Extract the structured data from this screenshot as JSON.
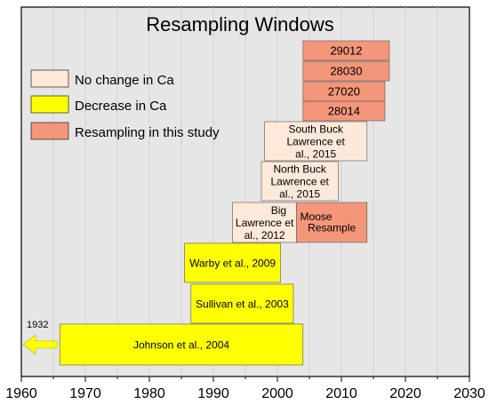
{
  "chart_data": {
    "type": "bar",
    "title": "Resampling Windows",
    "xlabel": "",
    "ylabel": "",
    "xlim": [
      1960,
      2030
    ],
    "x_ticks": [
      "1960",
      "1970",
      "1980",
      "1990",
      "2000",
      "2010",
      "2020",
      "2030"
    ],
    "grid": "vertical",
    "legend_position": "top-left",
    "legend": [
      {
        "label": "No change in Ca",
        "color": "#fde9d9"
      },
      {
        "label": "Decrease in Ca",
        "color": "#ffff00"
      },
      {
        "label": "Resampling in this study",
        "color": "#f4967a"
      }
    ],
    "bars": [
      {
        "label": "Johnson et al., 2004",
        "start": 1966,
        "end": 2004,
        "category": "Decrease in Ca"
      },
      {
        "label": "Sullivan et al., 2003",
        "start": 1986.5,
        "end": 2002.5,
        "category": "Decrease in Ca"
      },
      {
        "label": "Warby et al., 2009",
        "start": 1985.5,
        "end": 2000.5,
        "category": "Decrease in Ca"
      },
      {
        "label": "Big Moose Lawrence et al., 2012",
        "start": 1993,
        "end": 2003,
        "category": "No change in Ca"
      },
      {
        "label": "Resample",
        "start": 2003,
        "end": 2014,
        "category": "Resampling in this study"
      },
      {
        "label": "North Buck Lawrence et al., 2015",
        "start": 1997.5,
        "end": 2009.5,
        "category": "No change in Ca"
      },
      {
        "label": "South Buck Lawrence et al., 2015",
        "start": 1998,
        "end": 2014,
        "category": "No change in Ca"
      },
      {
        "label": "28014",
        "start": 2004,
        "end": 2016.8,
        "category": "Resampling in this study"
      },
      {
        "label": "27020",
        "start": 2004,
        "end": 2016.8,
        "category": "Resampling in this study"
      },
      {
        "label": "28030",
        "start": 2004,
        "end": 2017.5,
        "category": "Resampling in this study"
      },
      {
        "label": "29012",
        "start": 2004,
        "end": 2017.5,
        "category": "Resampling in this study"
      }
    ],
    "annotations": [
      {
        "text": "1932",
        "note": "arrow pointing left from Johnson et al. bar"
      }
    ]
  }
}
